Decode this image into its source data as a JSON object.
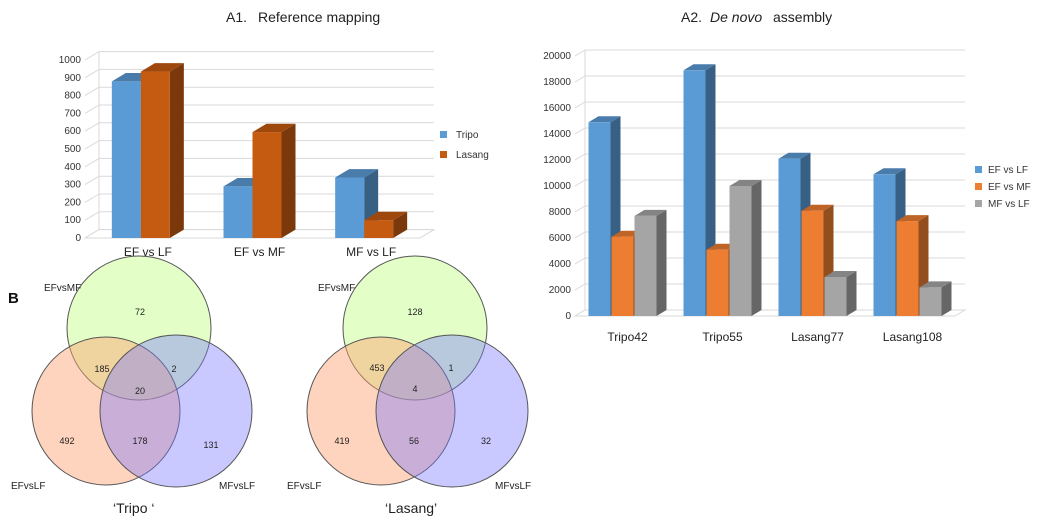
{
  "panel_b_label": "B",
  "chart_data": [
    {
      "type": "bar",
      "title_prefix": "A1.",
      "title": "Reference mapping",
      "categories": [
        "EF vs LF",
        "EF vs MF",
        "MF vs LF"
      ],
      "series": [
        {
          "name": "Tripo",
          "color": "#5b9bd5",
          "values": [
            880,
            290,
            340
          ]
        },
        {
          "name": "Lasang",
          "color": "#c55a11",
          "values": [
            935,
            595,
            100
          ]
        }
      ],
      "ylim": [
        0,
        1000
      ],
      "yticks": [
        0,
        100,
        200,
        300,
        400,
        500,
        600,
        700,
        800,
        900,
        1000
      ],
      "grid": true,
      "legend_position": "right"
    },
    {
      "type": "bar",
      "title_prefix": "A2.",
      "title": "De novo assembly",
      "title_italic_part": "De novo",
      "title_rest": "assembly",
      "categories": [
        "Tripo42",
        "Tripo55",
        "Lasang77",
        "Lasang108"
      ],
      "series": [
        {
          "name": "EF vs LF",
          "color": "#5b9bd5",
          "values": [
            14900,
            18900,
            12100,
            10900
          ]
        },
        {
          "name": "EF vs MF",
          "color": "#ed7d31",
          "values": [
            6100,
            5100,
            8100,
            7300
          ]
        },
        {
          "name": "MF vs LF",
          "color": "#a5a5a5",
          "values": [
            7700,
            10000,
            3000,
            2200
          ]
        }
      ],
      "ylim": [
        0,
        20000
      ],
      "yticks": [
        0,
        2000,
        4000,
        6000,
        8000,
        10000,
        12000,
        14000,
        16000,
        18000,
        20000
      ],
      "grid": true,
      "legend_position": "right"
    }
  ],
  "venns": [
    {
      "caption": "‘Tripo ‘",
      "sets": {
        "top": "EFvsMF",
        "left": "EFvsLF",
        "right": "MFvsLF"
      },
      "counts": {
        "top_only": "72",
        "left_only": "492",
        "right_only": "131",
        "top_left": "185",
        "top_right": "2",
        "left_right": "178",
        "all": "20"
      }
    },
    {
      "caption": "‘Lasang’",
      "sets": {
        "top": "EFvsMF",
        "left": "EFvsLF",
        "right": "MFvsLF"
      },
      "counts": {
        "top_only": "128",
        "left_only": "419",
        "right_only": "32",
        "top_left": "453",
        "top_right": "1",
        "left_right": "56",
        "all": "4"
      }
    }
  ]
}
